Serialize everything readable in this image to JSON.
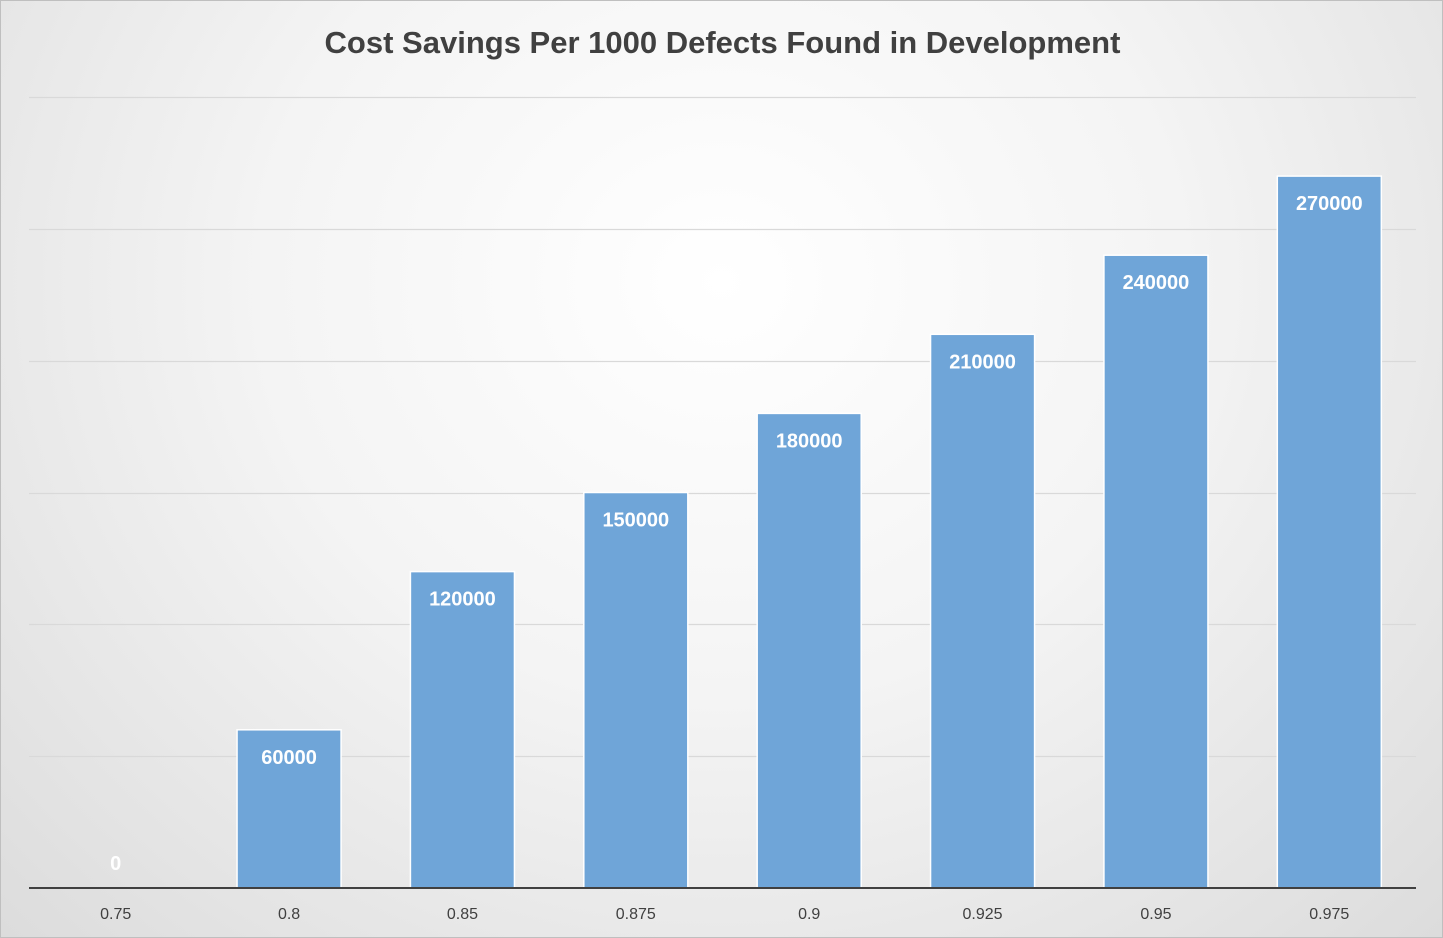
{
  "chart_data": {
    "type": "bar",
    "title": "Cost Savings Per 1000 Defects Found in Development",
    "xlabel": "",
    "ylabel": "",
    "categories": [
      "0.75",
      "0.8",
      "0.85",
      "0.875",
      "0.9",
      "0.925",
      "0.95",
      "0.975"
    ],
    "values": [
      0,
      60000,
      120000,
      150000,
      180000,
      210000,
      240000,
      270000
    ],
    "data_labels": [
      "0",
      "60000",
      "120000",
      "150000",
      "180000",
      "210000",
      "240000",
      "270000"
    ],
    "ylim": [
      0,
      300000
    ],
    "y_axis_labels_shown": false,
    "gridlines": [
      50000,
      100000,
      150000,
      200000,
      250000,
      300000
    ],
    "grid": true,
    "legend": "none",
    "colors": {
      "bar": "#6fa5d8",
      "bar_border": "#ffffff",
      "grid": "#d9d9d9",
      "axis": "#404040",
      "title": "#404040",
      "data_label": "#ffffff"
    }
  }
}
